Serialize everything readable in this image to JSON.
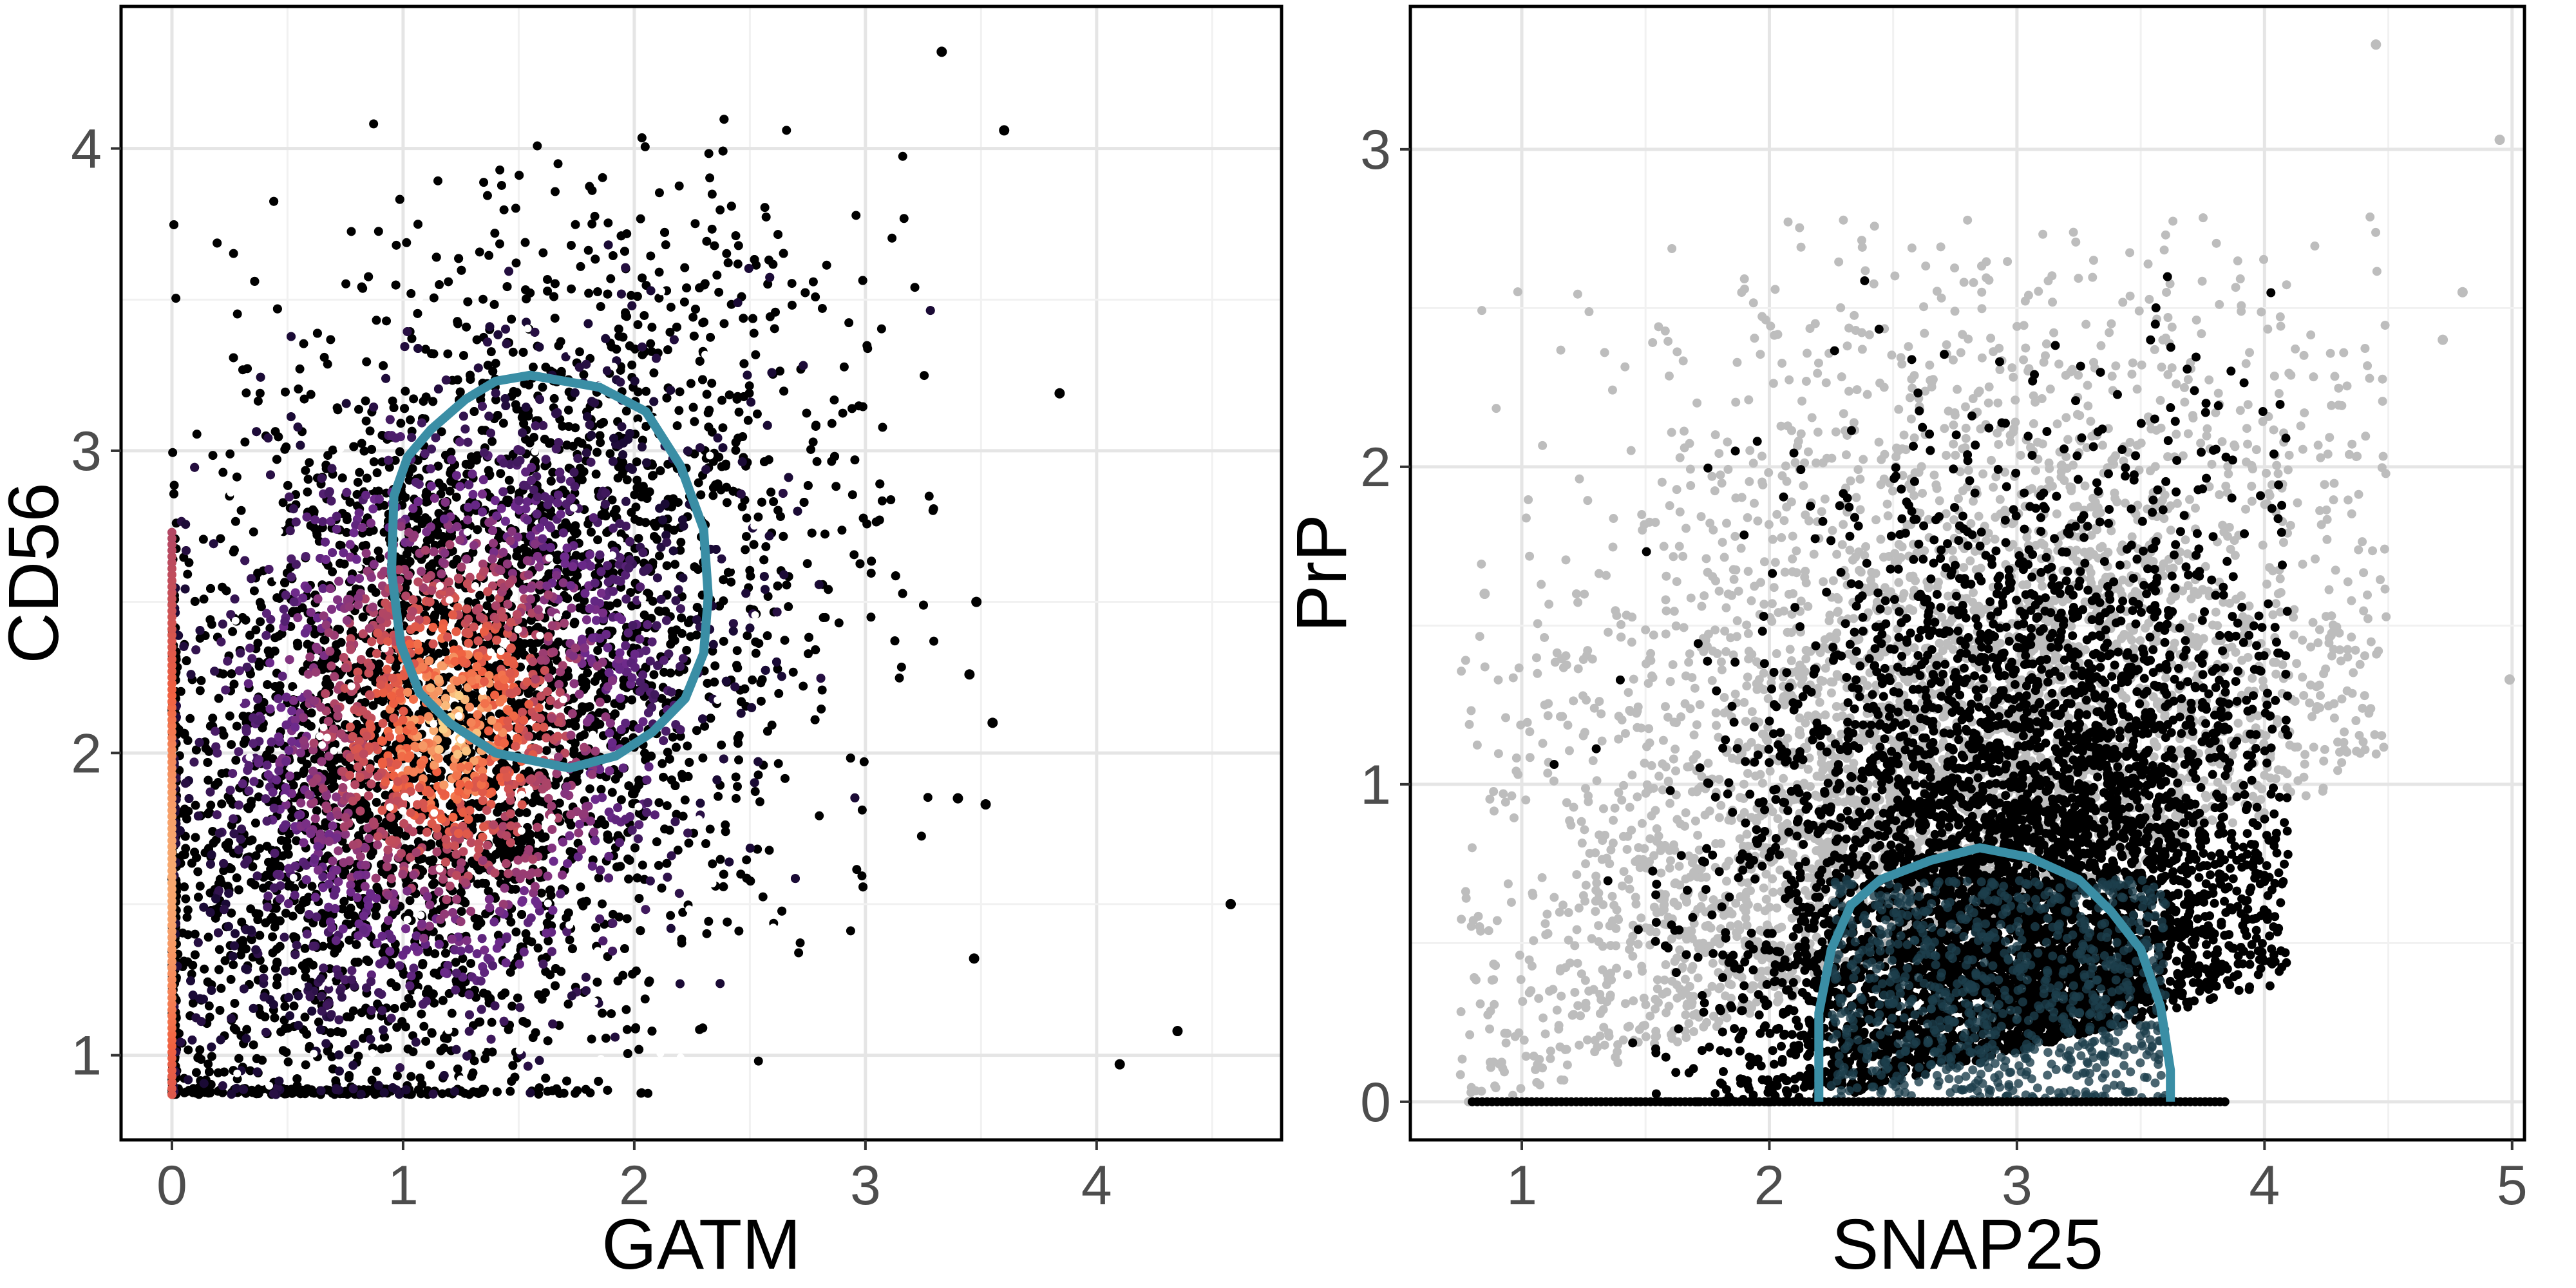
{
  "colors": {
    "contour": "#3a8ea5",
    "gray_points": "#bdbdbd",
    "black_points": "#000000",
    "white_points": "#ffffff",
    "density_low": "#1a0a35",
    "density_mid": "#6d2a8c",
    "density_high": "#f06040",
    "density_peak": "#fcd28a"
  },
  "chart_data": [
    {
      "type": "scatter",
      "subtype": "hexbin-density",
      "title": "",
      "xlabel": "GATM",
      "ylabel": "CD56",
      "xlim": [
        -0.22,
        4.8
      ],
      "ylim": [
        0.72,
        4.47
      ],
      "xticks": [
        0,
        1,
        2,
        3,
        4
      ],
      "yticks": [
        1,
        2,
        3,
        4
      ],
      "xtick_labels": [
        "0",
        "1",
        "2",
        "3",
        "4"
      ],
      "ytick_labels": [
        "1",
        "2",
        "3",
        "4"
      ],
      "grid": true,
      "legend": "none",
      "point_cloud": {
        "x_range": [
          0,
          3.3
        ],
        "y_range": [
          0.87,
          4.1
        ],
        "density_peak": [
          1.2,
          2.1
        ],
        "floor_y": 0.87,
        "left_edge_x": 0,
        "color_scale": "magma"
      },
      "outliers": [
        {
          "x": 3.33,
          "y": 4.32
        },
        {
          "x": 3.6,
          "y": 4.06
        },
        {
          "x": 3.84,
          "y": 3.19
        },
        {
          "x": 3.48,
          "y": 2.5
        },
        {
          "x": 3.45,
          "y": 2.26
        },
        {
          "x": 3.55,
          "y": 2.1
        },
        {
          "x": 3.52,
          "y": 1.83
        },
        {
          "x": 3.4,
          "y": 1.85
        },
        {
          "x": 4.58,
          "y": 1.5
        },
        {
          "x": 3.47,
          "y": 1.32
        },
        {
          "x": 4.35,
          "y": 1.08
        },
        {
          "x": 4.1,
          "y": 0.97
        }
      ],
      "contour": [
        {
          "x": 1.55,
          "y": 3.25
        },
        {
          "x": 1.85,
          "y": 3.21
        },
        {
          "x": 2.05,
          "y": 3.13
        },
        {
          "x": 2.2,
          "y": 2.95
        },
        {
          "x": 2.3,
          "y": 2.74
        },
        {
          "x": 2.32,
          "y": 2.52
        },
        {
          "x": 2.3,
          "y": 2.33
        },
        {
          "x": 2.22,
          "y": 2.18
        },
        {
          "x": 2.08,
          "y": 2.07
        },
        {
          "x": 1.92,
          "y": 1.99
        },
        {
          "x": 1.72,
          "y": 1.95
        },
        {
          "x": 1.4,
          "y": 2.0
        },
        {
          "x": 1.2,
          "y": 2.1
        },
        {
          "x": 1.07,
          "y": 2.2
        },
        {
          "x": 0.99,
          "y": 2.36
        },
        {
          "x": 0.95,
          "y": 2.6
        },
        {
          "x": 0.96,
          "y": 2.85
        },
        {
          "x": 1.02,
          "y": 2.98
        },
        {
          "x": 1.12,
          "y": 3.07
        },
        {
          "x": 1.27,
          "y": 3.17
        },
        {
          "x": 1.4,
          "y": 3.23
        }
      ]
    },
    {
      "type": "scatter",
      "subtype": "hexbin-density",
      "title": "",
      "xlabel": "SNAP25",
      "ylabel": "PrP",
      "xlim": [
        0.55,
        5.05
      ],
      "ylim": [
        -0.12,
        3.45
      ],
      "xticks": [
        1,
        2,
        3,
        4,
        5
      ],
      "yticks": [
        0,
        1,
        2,
        3
      ],
      "xtick_labels": [
        "1",
        "2",
        "3",
        "4",
        "5"
      ],
      "ytick_labels": [
        "0",
        "1",
        "2",
        "3"
      ],
      "grid": true,
      "legend": "none",
      "point_cloud": {
        "x_range": [
          0.75,
          4.5
        ],
        "y_range": [
          0,
          2.8
        ],
        "floor_y": 0,
        "core_center": [
          3.0,
          0.9
        ],
        "gray_band": "outer points along the upper-left and right edges"
      },
      "outliers": [
        {
          "x": 4.45,
          "y": 3.33
        },
        {
          "x": 4.95,
          "y": 3.03
        },
        {
          "x": 4.8,
          "y": 2.55
        },
        {
          "x": 4.99,
          "y": 1.33
        },
        {
          "x": 4.72,
          "y": 2.4
        },
        {
          "x": 0.85,
          "y": 1.6
        }
      ],
      "contour": [
        {
          "x": 2.2,
          "y": 0.0
        },
        {
          "x": 2.2,
          "y": 0.28
        },
        {
          "x": 2.25,
          "y": 0.48
        },
        {
          "x": 2.33,
          "y": 0.62
        },
        {
          "x": 2.45,
          "y": 0.7
        },
        {
          "x": 2.65,
          "y": 0.76
        },
        {
          "x": 2.85,
          "y": 0.8
        },
        {
          "x": 3.05,
          "y": 0.77
        },
        {
          "x": 3.25,
          "y": 0.7
        },
        {
          "x": 3.38,
          "y": 0.6
        },
        {
          "x": 3.5,
          "y": 0.48
        },
        {
          "x": 3.58,
          "y": 0.3
        },
        {
          "x": 3.62,
          "y": 0.1
        },
        {
          "x": 3.62,
          "y": 0.0
        }
      ]
    }
  ]
}
